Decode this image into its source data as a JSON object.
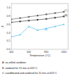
{
  "chart_data": {
    "type": "line",
    "title": "",
    "xlabel": "Temperature (°C)",
    "ylabel": "ε",
    "xlim": [
      400,
      1050
    ],
    "ylim": [
      0.0,
      1.1
    ],
    "xticks": [
      400,
      600,
      800,
      1000
    ],
    "yticks": [
      {
        "value": 0.0,
        "label": "0.0"
      },
      0.2,
      0.4,
      0.6,
      0.8,
      {
        "value": 1.0,
        "label": "1.0"
      }
    ],
    "grid": false,
    "legend": "bottom",
    "x": [
      400,
      500,
      600,
      700,
      800,
      900,
      1000
    ],
    "series": [
      {
        "name": "C: sandblasted and oxidized for 15 min at 615°C",
        "color": "#666666",
        "marker": "square",
        "values": [
          0.72,
          0.75,
          0.78,
          0.81,
          0.84,
          0.87,
          0.9
        ]
      },
      {
        "name": "B: oxidized for 15 min at 615°C",
        "color": "#444444",
        "marker": "square",
        "values": [
          0.65,
          0.67,
          0.69,
          0.71,
          0.73,
          0.76,
          0.79
        ]
      },
      {
        "name": "A: as-rolled condition",
        "color": "#55bbee",
        "marker": "triangle",
        "values": [
          0.3,
          0.35,
          0.55,
          0.46,
          0.5,
          0.55,
          0.6
        ]
      }
    ],
    "annotations": [
      {
        "text": "(C)",
        "x": 990,
        "y": 0.92,
        "color": "#666666"
      },
      {
        "text": "(B)",
        "x": 990,
        "y": 0.8,
        "color": "#444444"
      },
      {
        "text": "(A)",
        "x": 760,
        "y": 0.46,
        "color": "#55bbee"
      }
    ]
  }
}
